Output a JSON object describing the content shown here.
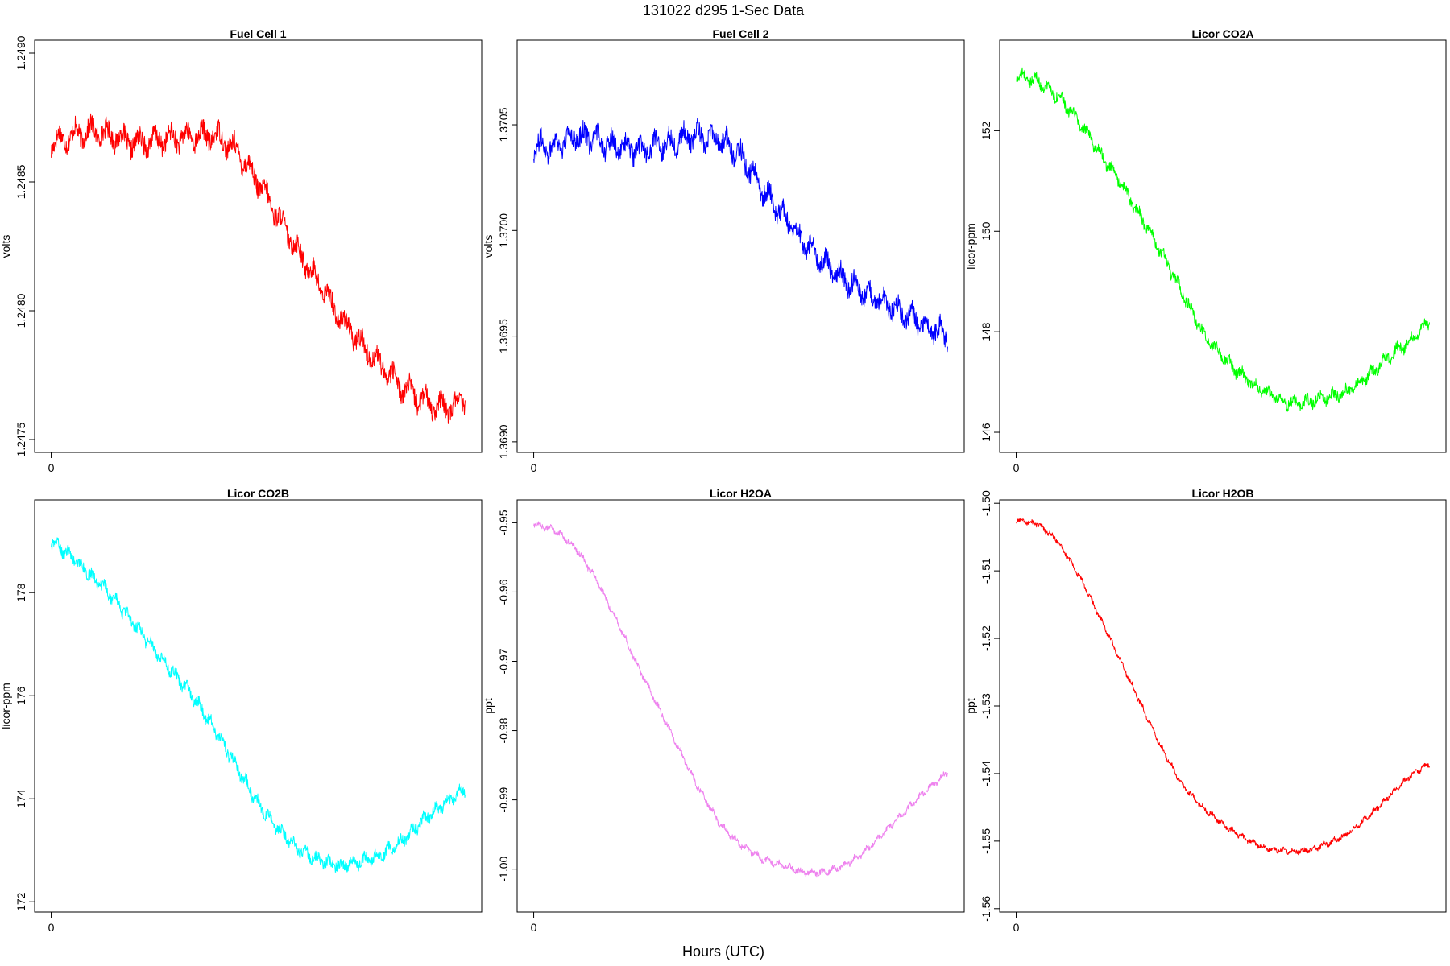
{
  "figure": {
    "title": "131022   d295   1-Sec Data",
    "xlabel": "Hours (UTC)"
  },
  "chart_data": [
    {
      "type": "line",
      "title": "Fuel Cell 1",
      "ylabel": "volts",
      "color": "#ff0000",
      "xlim": [
        -0.04,
        1.04
      ],
      "xticks": [
        0
      ],
      "xtick_labels": [
        "0"
      ],
      "ylim": [
        1.24745,
        1.24905
      ],
      "yticks": [
        1.2475,
        1.248,
        1.2485,
        1.249
      ],
      "ytick_labels": [
        "1.2475",
        "1.2480",
        "1.2485",
        "1.2490"
      ],
      "x": [
        0,
        0.05,
        0.1,
        0.15,
        0.2,
        0.25,
        0.3,
        0.35,
        0.4,
        0.45,
        0.5,
        0.55,
        0.6,
        0.65,
        0.7,
        0.75,
        0.8,
        0.85,
        0.9,
        0.95,
        1.0
      ],
      "y": [
        1.24865,
        1.24868,
        1.2487,
        1.24868,
        1.24865,
        1.24866,
        1.24867,
        1.24868,
        1.24868,
        1.24862,
        1.2485,
        1.24836,
        1.24822,
        1.2481,
        1.24797,
        1.24787,
        1.24778,
        1.2477,
        1.24765,
        1.24762,
        1.24765
      ],
      "noise_amplitude": 0.00013
    },
    {
      "type": "line",
      "title": "Fuel Cell 2",
      "ylabel": "volts",
      "color": "#0000ff",
      "xlim": [
        -0.04,
        1.04
      ],
      "xticks": [
        0
      ],
      "xtick_labels": [
        "0"
      ],
      "ylim": [
        1.36895,
        1.3709
      ],
      "yticks": [
        1.369,
        1.3695,
        1.37,
        1.3705
      ],
      "ytick_labels": [
        "1.3690",
        "1.3695",
        "1.3700",
        "1.3705"
      ],
      "x": [
        0,
        0.05,
        0.1,
        0.15,
        0.2,
        0.25,
        0.3,
        0.35,
        0.4,
        0.45,
        0.5,
        0.55,
        0.6,
        0.65,
        0.7,
        0.75,
        0.8,
        0.85,
        0.9,
        0.95,
        1.0
      ],
      "y": [
        1.3704,
        1.3704,
        1.37045,
        1.37043,
        1.3704,
        1.37038,
        1.3704,
        1.37043,
        1.37045,
        1.37043,
        1.37035,
        1.3702,
        1.37008,
        1.36995,
        1.36985,
        1.36977,
        1.3697,
        1.36965,
        1.3696,
        1.36955,
        1.3695
      ],
      "noise_amplitude": 0.00016
    },
    {
      "type": "line",
      "title": "Licor CO2A",
      "ylabel": "licor-ppm",
      "color": "#00ff00",
      "xlim": [
        -0.04,
        1.04
      ],
      "xticks": [
        0
      ],
      "xtick_labels": [
        "0"
      ],
      "ylim": [
        145.6,
        153.8
      ],
      "yticks": [
        146,
        148,
        150,
        152
      ],
      "ytick_labels": [
        "146",
        "148",
        "150",
        "152"
      ],
      "x": [
        0,
        0.05,
        0.1,
        0.15,
        0.2,
        0.25,
        0.3,
        0.35,
        0.4,
        0.45,
        0.5,
        0.55,
        0.6,
        0.65,
        0.7,
        0.75,
        0.8,
        0.85,
        0.9,
        0.95,
        1.0
      ],
      "y": [
        153.1,
        153.0,
        152.7,
        152.2,
        151.6,
        151.0,
        150.3,
        149.6,
        148.8,
        148.0,
        147.5,
        147.1,
        146.8,
        146.6,
        146.6,
        146.7,
        146.8,
        147.1,
        147.5,
        147.8,
        148.2
      ],
      "noise_amplitude": 0.35
    },
    {
      "type": "line",
      "title": "Licor CO2B",
      "ylabel": "licor-ppm",
      "color": "#00ffff",
      "xlim": [
        -0.04,
        1.04
      ],
      "xticks": [
        0
      ],
      "xtick_labels": [
        "0"
      ],
      "ylim": [
        171.8,
        179.8
      ],
      "yticks": [
        172,
        174,
        176,
        178
      ],
      "ytick_labels": [
        "172",
        "174",
        "176",
        "178"
      ],
      "x": [
        0,
        0.05,
        0.1,
        0.15,
        0.2,
        0.25,
        0.3,
        0.35,
        0.4,
        0.45,
        0.5,
        0.55,
        0.6,
        0.65,
        0.7,
        0.75,
        0.8,
        0.85,
        0.9,
        0.95,
        1.0
      ],
      "y": [
        179.0,
        178.7,
        178.3,
        177.9,
        177.4,
        176.9,
        176.4,
        175.9,
        175.3,
        174.6,
        173.9,
        173.4,
        173.0,
        172.8,
        172.7,
        172.8,
        172.9,
        173.2,
        173.6,
        173.9,
        174.2
      ],
      "noise_amplitude": 0.35
    },
    {
      "type": "line",
      "title": "Licor H2OA",
      "ylabel": "ppt",
      "color": "#ee82ee",
      "xlim": [
        -0.04,
        1.04
      ],
      "xticks": [
        0
      ],
      "xtick_labels": [
        "0"
      ],
      "ylim": [
        -1.0062,
        -0.9467
      ],
      "yticks": [
        -1.0,
        -0.99,
        -0.98,
        -0.97,
        -0.96,
        -0.95
      ],
      "ytick_labels": [
        "-1.00",
        "-0.99",
        "-0.98",
        "-0.97",
        "-0.96",
        "-0.95"
      ],
      "x": [
        0,
        0.05,
        0.1,
        0.15,
        0.2,
        0.25,
        0.3,
        0.35,
        0.4,
        0.45,
        0.5,
        0.55,
        0.6,
        0.65,
        0.7,
        0.75,
        0.8,
        0.85,
        0.9,
        0.95,
        1.0
      ],
      "y": [
        -0.9502,
        -0.951,
        -0.9535,
        -0.958,
        -0.964,
        -0.9705,
        -0.9765,
        -0.9825,
        -0.9885,
        -0.9935,
        -0.9965,
        -0.9985,
        -0.9995,
        -1.0005,
        -1.0005,
        -0.9995,
        -0.9975,
        -0.9945,
        -0.9915,
        -0.9885,
        -0.986
      ],
      "noise_amplitude": 0.0013
    },
    {
      "type": "line",
      "title": "Licor H2OB",
      "ylabel": "ppt",
      "color": "#ff0000",
      "xlim": [
        -0.04,
        1.04
      ],
      "xticks": [
        0
      ],
      "xtick_labels": [
        "0"
      ],
      "ylim": [
        -1.5605,
        -1.4995
      ],
      "yticks": [
        -1.56,
        -1.55,
        -1.54,
        -1.53,
        -1.52,
        -1.51,
        -1.5
      ],
      "ytick_labels": [
        "-1.56",
        "-1.55",
        "-1.54",
        "-1.53",
        "-1.52",
        "-1.51",
        "-1.50"
      ],
      "x": [
        0,
        0.05,
        0.1,
        0.15,
        0.2,
        0.25,
        0.3,
        0.35,
        0.4,
        0.45,
        0.5,
        0.55,
        0.6,
        0.65,
        0.7,
        0.75,
        0.8,
        0.85,
        0.9,
        0.95,
        1.0
      ],
      "y": [
        -1.5025,
        -1.503,
        -1.5055,
        -1.5105,
        -1.5165,
        -1.523,
        -1.5295,
        -1.536,
        -1.5415,
        -1.545,
        -1.5475,
        -1.5495,
        -1.551,
        -1.5515,
        -1.5515,
        -1.5505,
        -1.549,
        -1.5465,
        -1.5435,
        -1.5405,
        -1.5385
      ],
      "noise_amplitude": 0.0011
    }
  ]
}
